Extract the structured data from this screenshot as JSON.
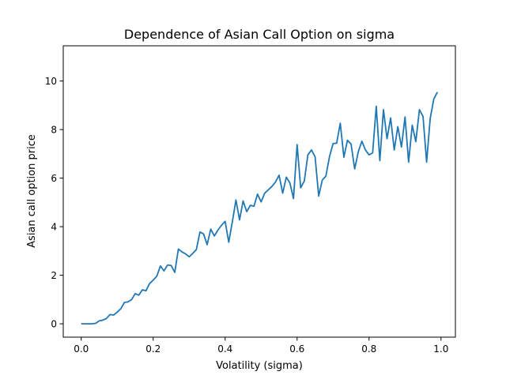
{
  "chart_data": {
    "type": "line",
    "title": "Dependence of Asian Call Option on sigma",
    "xlabel": "Volatility (sigma)",
    "ylabel": "Asian call option price",
    "xlim": [
      -0.05,
      1.04
    ],
    "ylim": [
      -0.55,
      11.45
    ],
    "xticks": [
      0.0,
      0.2,
      0.4,
      0.6,
      0.8,
      1.0
    ],
    "xtick_labels": [
      "0.0",
      "0.2",
      "0.4",
      "0.6",
      "0.8",
      "1.0"
    ],
    "yticks": [
      0,
      2,
      4,
      6,
      8,
      10
    ],
    "ytick_labels": [
      "0",
      "2",
      "4",
      "6",
      "8",
      "10"
    ],
    "grid": false,
    "series_color": "#1f77b4",
    "x": [
      0.0,
      0.01,
      0.02,
      0.03,
      0.04,
      0.05,
      0.06,
      0.07,
      0.08,
      0.09,
      0.1,
      0.11,
      0.12,
      0.13,
      0.14,
      0.15,
      0.16,
      0.17,
      0.18,
      0.19,
      0.2,
      0.21,
      0.22,
      0.23,
      0.24,
      0.25,
      0.26,
      0.27,
      0.28,
      0.29,
      0.3,
      0.31,
      0.32,
      0.33,
      0.34,
      0.35,
      0.36,
      0.37,
      0.38,
      0.39,
      0.4,
      0.41,
      0.42,
      0.43,
      0.44,
      0.45,
      0.46,
      0.47,
      0.48,
      0.49,
      0.5,
      0.51,
      0.52,
      0.53,
      0.54,
      0.55,
      0.56,
      0.57,
      0.58,
      0.59,
      0.6,
      0.61,
      0.62,
      0.63,
      0.64,
      0.65,
      0.66,
      0.67,
      0.68,
      0.69,
      0.7,
      0.71,
      0.72,
      0.73,
      0.74,
      0.75,
      0.76,
      0.77,
      0.78,
      0.79,
      0.8,
      0.81,
      0.82,
      0.83,
      0.84,
      0.85,
      0.86,
      0.87,
      0.88,
      0.89,
      0.9,
      0.91,
      0.92,
      0.93,
      0.94,
      0.95,
      0.96,
      0.97,
      0.98,
      0.99
    ],
    "y": [
      0.0,
      0.0,
      0.0,
      0.0,
      0.02,
      0.12,
      0.15,
      0.22,
      0.38,
      0.36,
      0.48,
      0.62,
      0.88,
      0.9,
      1.0,
      1.24,
      1.18,
      1.4,
      1.36,
      1.66,
      1.8,
      1.96,
      2.38,
      2.18,
      2.42,
      2.4,
      2.12,
      3.08,
      2.96,
      2.88,
      2.76,
      2.9,
      3.06,
      3.78,
      3.7,
      3.26,
      3.9,
      3.62,
      3.86,
      4.06,
      4.22,
      3.36,
      4.2,
      5.1,
      4.28,
      5.06,
      4.62,
      4.88,
      4.84,
      5.34,
      5.02,
      5.38,
      5.52,
      5.66,
      5.84,
      6.12,
      5.38,
      6.04,
      5.8,
      5.16,
      7.38,
      5.6,
      5.88,
      6.96,
      7.16,
      6.88,
      5.26,
      5.92,
      6.08,
      6.88,
      7.42,
      7.44,
      8.26,
      6.86,
      7.56,
      7.4,
      6.38,
      7.08,
      7.52,
      7.16,
      6.96,
      7.04,
      8.96,
      6.72,
      8.82,
      7.62,
      8.48,
      7.16,
      8.12,
      7.28,
      8.52,
      6.66,
      8.18,
      7.5,
      8.82,
      8.54,
      6.66,
      8.46,
      9.26,
      9.54
    ]
  }
}
